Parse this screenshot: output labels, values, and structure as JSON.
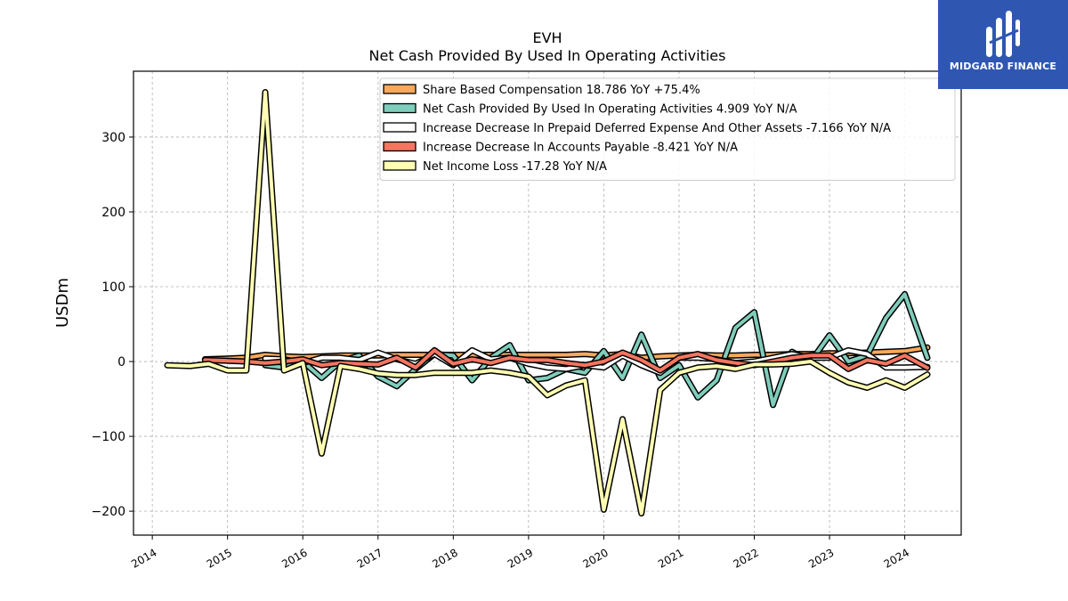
{
  "brand": {
    "name": "MIDGARD FINANCE",
    "color": "#2f57b2"
  },
  "chart_data": {
    "type": "line",
    "title": "EVH",
    "subtitle": "Net Cash Provided By Used In Operating Activities",
    "xlabel": "",
    "ylabel": "USDm",
    "xlim": [
      2013.75,
      2024.75
    ],
    "ylim": [
      -232,
      388
    ],
    "yticks": [
      -200,
      -100,
      0,
      100,
      200,
      300
    ],
    "ytick_labels": [
      "−200",
      "−100",
      "0",
      "100",
      "200",
      "300"
    ],
    "xticks": [
      2014,
      2015,
      2016,
      2017,
      2018,
      2019,
      2020,
      2021,
      2022,
      2023,
      2024
    ],
    "xtick_labels": [
      "2014",
      "2015",
      "2016",
      "2017",
      "2018",
      "2019",
      "2020",
      "2021",
      "2022",
      "2023",
      "2024"
    ],
    "grid": true,
    "legend_position": "top-right",
    "series": [
      {
        "name": "Share Based Compensation",
        "legend_label": "Share Based Compensation  18.786 YoY +75.4%",
        "color": "#f7a95c",
        "x": [
          2014.7,
          2015.0,
          2015.25,
          2015.5,
          2015.75,
          2016.0,
          2016.25,
          2016.5,
          2016.75,
          2017.0,
          2017.25,
          2017.5,
          2017.75,
          2018.0,
          2018.25,
          2018.5,
          2018.75,
          2019.0,
          2019.25,
          2019.5,
          2019.75,
          2020.0,
          2020.25,
          2020.5,
          2020.75,
          2021.0,
          2021.25,
          2021.5,
          2021.75,
          2022.0,
          2022.25,
          2022.5,
          2022.75,
          2023.0,
          2023.25,
          2023.5,
          2023.75,
          2024.0,
          2024.3
        ],
        "y": [
          3,
          4,
          5,
          9,
          7,
          6,
          7,
          8,
          8,
          8,
          9,
          9,
          9,
          9,
          9,
          9,
          9,
          9,
          9,
          9,
          10,
          8,
          10,
          5,
          7,
          8,
          9,
          8,
          8,
          9,
          9,
          10,
          10,
          11,
          11,
          12,
          13,
          14,
          18.786
        ]
      },
      {
        "name": "Net Cash Provided By Used In Operating Activities",
        "legend_label": "Net Cash Provided By Used In Operating Activities  4.909 YoY N/A",
        "color": "#7fcdbb",
        "x": [
          2015.5,
          2015.75,
          2016.0,
          2016.25,
          2016.5,
          2016.75,
          2017.0,
          2017.25,
          2017.5,
          2017.75,
          2018.0,
          2018.25,
          2018.5,
          2018.75,
          2019.0,
          2019.25,
          2019.5,
          2019.75,
          2020.0,
          2020.25,
          2020.5,
          2020.75,
          2021.0,
          2021.25,
          2021.5,
          2021.75,
          2022.0,
          2022.25,
          2022.5,
          2022.75,
          2023.0,
          2023.25,
          2023.5,
          2023.75,
          2024.0,
          2024.3
        ],
        "y": [
          -5,
          -8,
          0,
          -22,
          0,
          8,
          -20,
          -33,
          -10,
          10,
          8,
          -25,
          5,
          22,
          -25,
          -22,
          -10,
          -15,
          14,
          -22,
          36,
          -22,
          -5,
          -48,
          -25,
          45,
          66,
          -58,
          13,
          0,
          35,
          0,
          8,
          58,
          90,
          4.909
        ]
      },
      {
        "name": "Increase Decrease In Prepaid Deferred Expense And Other Assets",
        "legend_label": "Increase Decrease In Prepaid Deferred Expense And Other Assets  -7.166 YoY N/A",
        "color": "#ffffff",
        "x": [
          2015.5,
          2015.75,
          2016.0,
          2016.25,
          2016.5,
          2016.75,
          2017.0,
          2017.25,
          2017.5,
          2017.75,
          2018.0,
          2018.25,
          2018.5,
          2018.75,
          2019.0,
          2019.25,
          2019.5,
          2019.75,
          2020.0,
          2020.25,
          2020.5,
          2020.75,
          2021.0,
          2021.25,
          2021.5,
          2021.75,
          2022.0,
          2022.25,
          2022.5,
          2022.75,
          2023.0,
          2023.25,
          2023.5,
          2023.75,
          2024.0,
          2024.3
        ],
        "y": [
          4,
          3,
          -2,
          5,
          5,
          2,
          12,
          3,
          -3,
          10,
          -5,
          15,
          3,
          5,
          -3,
          -8,
          -10,
          -5,
          -8,
          8,
          -5,
          -15,
          5,
          5,
          3,
          -2,
          0,
          5,
          10,
          5,
          5,
          15,
          10,
          -8,
          -8,
          -7.166
        ]
      },
      {
        "name": "Increase Decrease In Accounts Payable",
        "legend_label": "Increase Decrease In Accounts Payable  -8.421 YoY N/A",
        "color": "#f47560",
        "x": [
          2014.7,
          2015.0,
          2015.25,
          2015.5,
          2015.75,
          2016.0,
          2016.25,
          2016.5,
          2016.75,
          2017.0,
          2017.25,
          2017.5,
          2017.75,
          2018.0,
          2018.25,
          2018.5,
          2018.75,
          2019.0,
          2019.25,
          2019.5,
          2019.75,
          2020.0,
          2020.25,
          2020.5,
          2020.75,
          2021.0,
          2021.25,
          2021.5,
          2021.75,
          2022.0,
          2022.25,
          2022.5,
          2022.75,
          2023.0,
          2023.25,
          2023.5,
          2023.75,
          2024.0,
          2024.3
        ],
        "y": [
          2,
          1,
          0,
          -2,
          0,
          3,
          -5,
          -2,
          -3,
          -4,
          5,
          -8,
          15,
          -3,
          3,
          -2,
          5,
          2,
          2,
          -2,
          -5,
          0,
          12,
          2,
          -12,
          5,
          10,
          2,
          -2,
          -5,
          0,
          5,
          8,
          8,
          -10,
          2,
          -3,
          8,
          -8.421
        ]
      },
      {
        "name": "Net Income Loss",
        "legend_label": "Net Income Loss  -17.28 YoY N/A",
        "color": "#ffffb3",
        "x": [
          2014.2,
          2014.5,
          2014.75,
          2015.0,
          2015.25,
          2015.5,
          2015.75,
          2016.0,
          2016.25,
          2016.5,
          2016.75,
          2017.0,
          2017.25,
          2017.5,
          2017.75,
          2018.0,
          2018.25,
          2018.5,
          2018.75,
          2019.0,
          2019.25,
          2019.5,
          2019.75,
          2020.0,
          2020.25,
          2020.5,
          2020.75,
          2021.0,
          2021.25,
          2021.5,
          2021.75,
          2022.0,
          2022.25,
          2022.5,
          2022.75,
          2023.0,
          2023.25,
          2023.5,
          2023.75,
          2024.0,
          2024.3
        ],
        "y": [
          -5,
          -6,
          -3,
          -12,
          -12,
          360,
          -12,
          -2,
          -123,
          -6,
          -10,
          -16,
          -18,
          -18,
          -15,
          -15,
          -15,
          -12,
          -15,
          -20,
          -45,
          -32,
          -25,
          -198,
          -77,
          -203,
          -38,
          -15,
          -8,
          -6,
          -10,
          -4,
          -4,
          -3,
          0,
          -15,
          -28,
          -35,
          -25,
          -35,
          -17.28
        ]
      }
    ]
  }
}
